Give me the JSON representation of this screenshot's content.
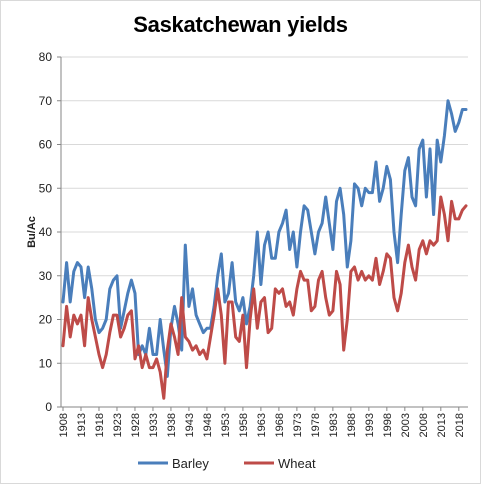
{
  "chart_data": {
    "type": "line",
    "title": "Saskatchewan yields",
    "xlabel": "",
    "ylabel": "Bu/Ac",
    "ylim": [
      0,
      80
    ],
    "yticks": [
      "0",
      "10",
      "20",
      "30",
      "40",
      "50",
      "60",
      "70",
      "80"
    ],
    "xlim": [
      1908,
      2020
    ],
    "xticks": [
      "1908",
      "1913",
      "1918",
      "1923",
      "1928",
      "1933",
      "1938",
      "1943",
      "1948",
      "1953",
      "1958",
      "1963",
      "1968",
      "1973",
      "1978",
      "1983",
      "1988",
      "1993",
      "1998",
      "2003",
      "2008",
      "2013",
      "2018"
    ],
    "grid": "horizontal",
    "legend": "bottom",
    "series": [
      {
        "name": "Barley",
        "color": "#4a7ebb",
        "x": [
          1908,
          1909,
          1910,
          1911,
          1912,
          1913,
          1914,
          1915,
          1916,
          1917,
          1918,
          1919,
          1920,
          1921,
          1922,
          1923,
          1924,
          1925,
          1926,
          1927,
          1928,
          1929,
          1930,
          1931,
          1932,
          1933,
          1934,
          1935,
          1936,
          1937,
          1938,
          1939,
          1940,
          1941,
          1942,
          1943,
          1944,
          1945,
          1946,
          1947,
          1948,
          1949,
          1950,
          1951,
          1952,
          1953,
          1954,
          1955,
          1956,
          1957,
          1958,
          1959,
          1960,
          1961,
          1962,
          1963,
          1964,
          1965,
          1966,
          1967,
          1968,
          1969,
          1970,
          1971,
          1972,
          1973,
          1974,
          1975,
          1976,
          1977,
          1978,
          1979,
          1980,
          1981,
          1982,
          1983,
          1984,
          1985,
          1986,
          1987,
          1988,
          1989,
          1990,
          1991,
          1992,
          1993,
          1994,
          1995,
          1996,
          1997,
          1998,
          1999,
          2000,
          2001,
          2002,
          2003,
          2004,
          2005,
          2006,
          2007,
          2008,
          2009,
          2010,
          2011,
          2012,
          2013,
          2014,
          2015,
          2016,
          2017,
          2018,
          2019,
          2020
        ],
        "values": [
          24,
          33,
          24,
          31,
          33,
          32,
          25,
          32,
          27,
          20,
          17,
          18,
          20,
          27,
          29,
          30,
          18,
          22,
          26,
          29,
          26,
          12,
          14,
          12,
          18,
          12,
          12,
          20,
          13,
          7,
          18,
          23,
          19,
          13,
          37,
          23,
          27,
          21,
          19,
          17,
          18,
          18,
          23,
          30,
          35,
          24,
          26,
          33,
          24,
          22,
          25,
          19,
          23,
          30,
          40,
          28,
          37,
          40,
          34,
          34,
          40,
          42,
          45,
          36,
          40,
          32,
          40,
          46,
          45,
          40,
          35,
          40,
          42,
          48,
          42,
          36,
          47,
          50,
          44,
          32,
          38,
          51,
          50,
          46,
          50,
          49,
          49,
          56,
          47,
          50,
          55,
          52,
          40,
          33,
          44,
          54,
          57,
          48,
          46,
          59,
          61,
          48,
          59,
          44,
          61,
          56,
          62,
          70,
          67,
          63,
          65,
          68,
          68
        ]
      },
      {
        "name": "Wheat",
        "color": "#be4b48",
        "x": [
          1908,
          1909,
          1910,
          1911,
          1912,
          1913,
          1914,
          1915,
          1916,
          1917,
          1918,
          1919,
          1920,
          1921,
          1922,
          1923,
          1924,
          1925,
          1926,
          1927,
          1928,
          1929,
          1930,
          1931,
          1932,
          1933,
          1934,
          1935,
          1936,
          1937,
          1938,
          1939,
          1940,
          1941,
          1942,
          1943,
          1944,
          1945,
          1946,
          1947,
          1948,
          1949,
          1950,
          1951,
          1952,
          1953,
          1954,
          1955,
          1956,
          1957,
          1958,
          1959,
          1960,
          1961,
          1962,
          1963,
          1964,
          1965,
          1966,
          1967,
          1968,
          1969,
          1970,
          1971,
          1972,
          1973,
          1974,
          1975,
          1976,
          1977,
          1978,
          1979,
          1980,
          1981,
          1982,
          1983,
          1984,
          1985,
          1986,
          1987,
          1988,
          1989,
          1990,
          1991,
          1992,
          1993,
          1994,
          1995,
          1996,
          1997,
          1998,
          1999,
          2000,
          2001,
          2002,
          2003,
          2004,
          2005,
          2006,
          2007,
          2008,
          2009,
          2010,
          2011,
          2012,
          2013,
          2014,
          2015,
          2016,
          2017,
          2018,
          2019,
          2020
        ],
        "values": [
          14,
          23,
          16,
          21,
          19,
          21,
          14,
          25,
          20,
          16,
          12,
          9,
          12,
          17,
          21,
          21,
          16,
          18,
          21,
          22,
          11,
          14,
          9,
          12,
          9,
          9,
          11,
          8,
          2,
          13,
          19,
          16,
          12,
          25,
          16,
          15,
          13,
          14,
          12,
          13,
          11,
          16,
          21,
          27,
          21,
          10,
          24,
          24,
          16,
          15,
          21,
          9,
          20,
          27,
          18,
          24,
          25,
          17,
          18,
          27,
          26,
          27,
          23,
          24,
          21,
          27,
          31,
          29,
          29,
          22,
          23,
          29,
          31,
          25,
          21,
          22,
          31,
          28,
          13,
          20,
          31,
          32,
          29,
          31,
          29,
          30,
          29,
          34,
          28,
          31,
          35,
          34,
          25,
          22,
          26,
          33,
          37,
          32,
          29,
          36,
          38,
          35,
          38,
          37,
          38,
          48,
          44,
          38,
          47,
          43,
          43,
          45,
          46
        ]
      }
    ]
  }
}
